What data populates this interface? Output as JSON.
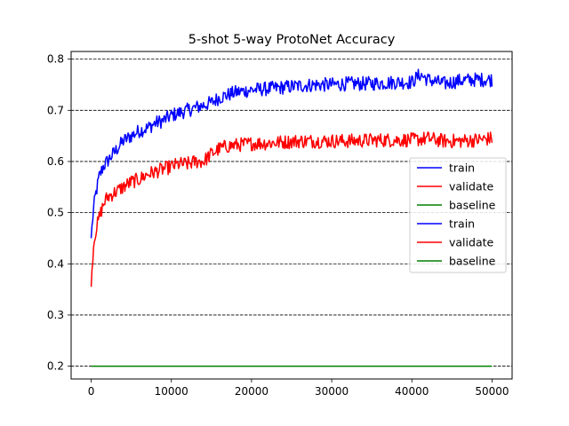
{
  "chart_data": {
    "type": "line",
    "title": "5-shot 5-way ProtoNet Accuracy",
    "xlabel": "",
    "ylabel": "",
    "xlim": [
      -2500,
      52500
    ],
    "ylim": [
      0.175,
      0.815
    ],
    "xticks": [
      0,
      10000,
      20000,
      30000,
      40000,
      50000
    ],
    "xtick_labels": [
      "0",
      "10000",
      "20000",
      "30000",
      "40000",
      "50000"
    ],
    "yticks": [
      0.2,
      0.3,
      0.4,
      0.5,
      0.6,
      0.7,
      0.8
    ],
    "ytick_labels": [
      "0.2",
      "0.3",
      "0.4",
      "0.5",
      "0.6",
      "0.7",
      "0.8"
    ],
    "grid": "horizontal dashed",
    "legend_position": "center-right",
    "legend": [
      "train",
      "validate",
      "baseline",
      "train",
      "validate",
      "baseline"
    ],
    "series": [
      {
        "name": "train",
        "color": "#0000ff",
        "x": [
          0,
          250,
          500,
          1000,
          1500,
          2000,
          3000,
          4000,
          5000,
          6000,
          7000,
          8000,
          9000,
          10000,
          11000,
          12000,
          13000,
          14000,
          15000,
          16000,
          17000,
          18000,
          20000,
          22000,
          24000,
          26000,
          28000,
          30000,
          32000,
          34000,
          36000,
          38000,
          40000,
          41000,
          42000,
          44000,
          46000,
          48000,
          50000
        ],
        "y": [
          0.45,
          0.5,
          0.53,
          0.57,
          0.59,
          0.6,
          0.62,
          0.64,
          0.65,
          0.66,
          0.665,
          0.675,
          0.68,
          0.69,
          0.695,
          0.7,
          0.705,
          0.71,
          0.715,
          0.725,
          0.73,
          0.735,
          0.74,
          0.742,
          0.745,
          0.748,
          0.75,
          0.75,
          0.752,
          0.752,
          0.753,
          0.755,
          0.755,
          0.77,
          0.76,
          0.752,
          0.758,
          0.76,
          0.76
        ]
      },
      {
        "name": "validate",
        "color": "#ff0000",
        "x": [
          0,
          250,
          500,
          1000,
          1500,
          2000,
          3000,
          4000,
          5000,
          6000,
          7000,
          8000,
          9000,
          10000,
          11000,
          12000,
          13000,
          14000,
          15000,
          16000,
          17000,
          18000,
          20000,
          22000,
          24000,
          26000,
          28000,
          30000,
          32000,
          34000,
          36000,
          38000,
          40000,
          42000,
          44000,
          46000,
          48000,
          50000
        ],
        "y": [
          0.355,
          0.43,
          0.46,
          0.49,
          0.515,
          0.53,
          0.54,
          0.55,
          0.56,
          0.565,
          0.575,
          0.58,
          0.585,
          0.59,
          0.595,
          0.595,
          0.6,
          0.6,
          0.615,
          0.625,
          0.63,
          0.632,
          0.635,
          0.636,
          0.638,
          0.64,
          0.64,
          0.64,
          0.64,
          0.641,
          0.642,
          0.642,
          0.642,
          0.645,
          0.64,
          0.64,
          0.642,
          0.645
        ]
      },
      {
        "name": "baseline",
        "color": "#008000",
        "x": [
          0,
          50000
        ],
        "y": [
          0.2,
          0.2
        ]
      }
    ]
  }
}
